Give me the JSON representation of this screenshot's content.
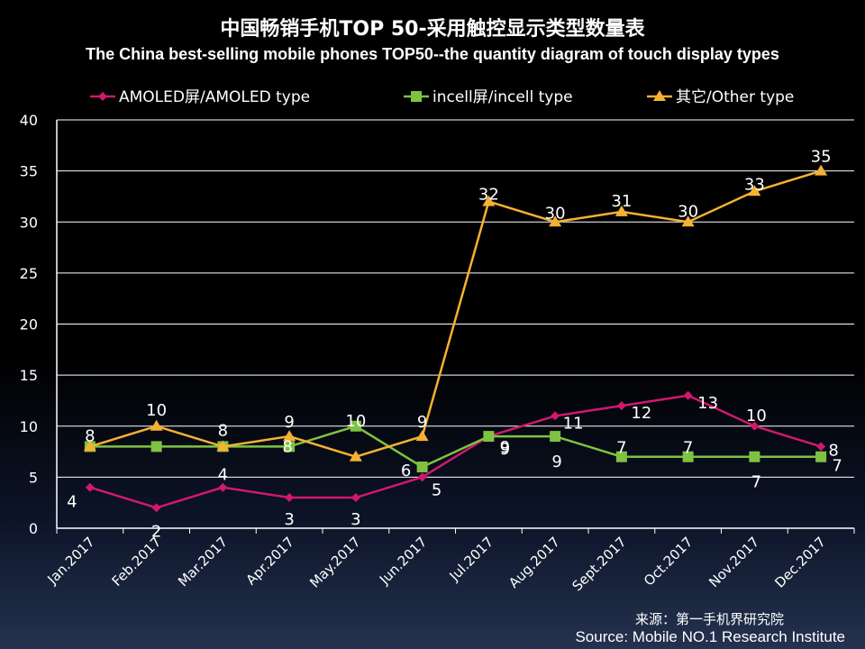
{
  "title_cn": "中国畅销手机TOP 50-采用触控显示类型数量表",
  "title_en": "The China best-selling mobile phones TOP50--the quantity diagram of touch display types",
  "source_cn": "来源：第一手机界研究院",
  "source_en": "Source: Mobile NO.1 Research Institute",
  "colors": {
    "amoled": "#d1186f",
    "incell": "#7fc242",
    "other": "#f5b133",
    "axis": "#ffffff",
    "grid": "#ffffff",
    "text": "#ffffff"
  },
  "chart_data": {
    "type": "line",
    "categories": [
      "Jan.2017",
      "Feb.2017",
      "Mar.2017",
      "Apr.2017",
      "May.2017",
      "Jun.2017",
      "Jul.2017",
      "Aug.2017",
      "Sept.2017",
      "Oct.2017",
      "Nov.2017",
      "Dec.2017"
    ],
    "ylim": [
      0,
      40
    ],
    "yticks": [
      0,
      5,
      10,
      15,
      20,
      25,
      30,
      35,
      40
    ],
    "grid": true,
    "legend_position": "top",
    "series": [
      {
        "key": "amoled",
        "name": "AMOLED屏/AMOLED type",
        "marker": "diamond",
        "values": [
          4,
          2,
          4,
          3,
          3,
          5,
          9,
          11,
          12,
          13,
          10,
          8
        ]
      },
      {
        "key": "incell",
        "name": "incell屏/incell type",
        "marker": "square",
        "values": [
          8,
          8,
          8,
          8,
          10,
          6,
          9,
          9,
          7,
          7,
          7,
          7
        ]
      },
      {
        "key": "other",
        "name": "其它/Other type",
        "marker": "triangle",
        "values": [
          8,
          10,
          8,
          9,
          7,
          9,
          32,
          30,
          31,
          30,
          33,
          35
        ]
      }
    ]
  }
}
